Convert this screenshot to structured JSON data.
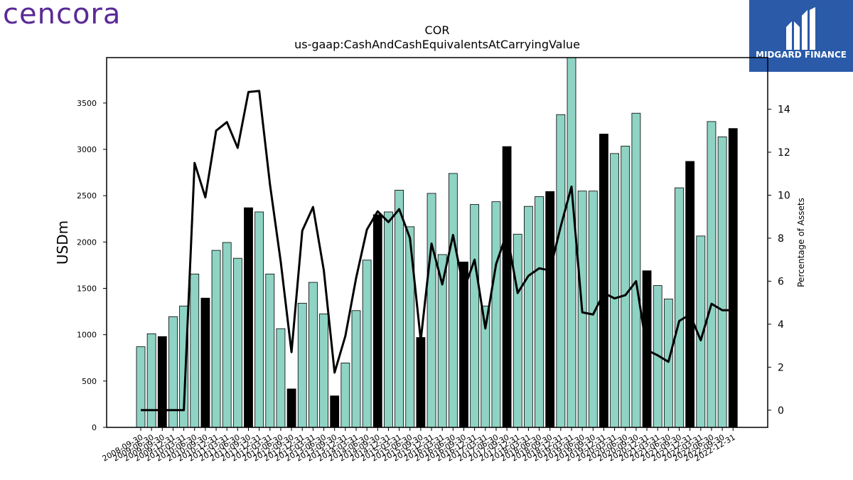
{
  "branding": {
    "left_logo": "cencora",
    "right_logo": "MIDGARD FINANCE",
    "left_logo_color": "#5b2a96",
    "right_logo_bg": "#2a5aa8"
  },
  "chart_data": {
    "type": "bar",
    "title": "COR",
    "subtitle": "us-gaap:CashAndCashEquivalentsAtCarryingValue",
    "ylabel": "USDm",
    "y2label": "Percentage of Assets",
    "ylim": [
      0,
      3990
    ],
    "y2lim": [
      -0.8,
      16.4
    ],
    "yticks": [
      0,
      500,
      1000,
      1500,
      2000,
      2500,
      3000,
      3500
    ],
    "y2ticks": [
      0,
      2,
      4,
      6,
      8,
      10,
      12,
      14
    ],
    "colors": {
      "bar": "#8ed3c4",
      "highlight": "#000000",
      "line": "#000000"
    },
    "categories": [
      "2008-09-30",
      "2009-06-30",
      "2009-09-30",
      "2009-12-31",
      "2010-03-31",
      "2010-06-30",
      "2010-09-30",
      "2010-12-31",
      "2011-03-31",
      "2011-06-30",
      "2011-09-30",
      "2011-12-31",
      "2012-03-31",
      "2012-06-30",
      "2012-09-30",
      "2012-12-31",
      "2013-03-31",
      "2013-06-30",
      "2013-09-30",
      "2013-12-31",
      "2014-03-31",
      "2014-06-30",
      "2014-09-30",
      "2014-12-31",
      "2015-03-31",
      "2015-06-30",
      "2015-09-30",
      "2015-12-31",
      "2016-03-31",
      "2016-06-30",
      "2016-09-30",
      "2016-12-31",
      "2017-03-31",
      "2017-06-30",
      "2017-09-30",
      "2017-12-31",
      "2018-03-31",
      "2018-06-30",
      "2018-09-30",
      "2018-12-31",
      "2019-03-31",
      "2019-06-30",
      "2019-09-30",
      "2019-12-31",
      "2020-03-31",
      "2020-06-30",
      "2020-09-30",
      "2020-12-31",
      "2021-03-31",
      "2021-06-30",
      "2021-09-30",
      "2021-12-31",
      "2022-03-31",
      "2022-06-30",
      "2022-09-30",
      "2022-12-31"
    ],
    "series": [
      {
        "type": "bar",
        "values": [
          870,
          1010,
          980,
          1195,
          1310,
          1655,
          1395,
          1910,
          1995,
          1825,
          2370,
          2325,
          1655,
          1065,
          415,
          1340,
          1565,
          1225,
          340,
          695,
          1260,
          1805,
          2295,
          2325,
          2560,
          2165,
          970,
          2525,
          1865,
          2740,
          1785,
          2405,
          1310,
          2435,
          3030,
          2085,
          2385,
          2490,
          2545,
          3375,
          3990,
          2550,
          2550,
          3165,
          2955,
          3035,
          3390,
          1690,
          1530,
          1385,
          2585,
          2870,
          2065,
          3300,
          3135,
          3225
        ],
        "highlight": [
          false,
          false,
          true,
          false,
          false,
          false,
          true,
          false,
          false,
          false,
          true,
          false,
          false,
          false,
          true,
          false,
          false,
          false,
          true,
          false,
          false,
          false,
          true,
          false,
          false,
          false,
          true,
          false,
          false,
          false,
          true,
          false,
          false,
          false,
          true,
          false,
          false,
          false,
          true,
          false,
          false,
          false,
          false,
          true,
          false,
          false,
          false,
          true,
          false,
          false,
          false,
          true,
          false,
          false,
          false,
          true
        ]
      },
      {
        "type": "line",
        "axis": "right",
        "values": [
          0.0,
          0.0,
          0.0,
          0.0,
          0.0,
          11.5,
          9.9,
          13.0,
          13.4,
          12.2,
          14.8,
          14.85,
          10.5,
          6.9,
          2.7,
          8.35,
          9.45,
          6.5,
          1.75,
          3.45,
          6.15,
          8.4,
          9.25,
          8.75,
          9.35,
          8.0,
          3.25,
          7.75,
          5.85,
          8.15,
          5.6,
          7.0,
          3.8,
          6.8,
          8.25,
          5.45,
          6.25,
          6.6,
          6.5,
          8.55,
          10.4,
          4.55,
          4.45,
          5.45,
          5.2,
          5.35,
          6.0,
          2.8,
          2.55,
          2.25,
          4.15,
          4.45,
          3.25,
          4.95,
          4.65,
          4.65
        ]
      }
    ]
  }
}
